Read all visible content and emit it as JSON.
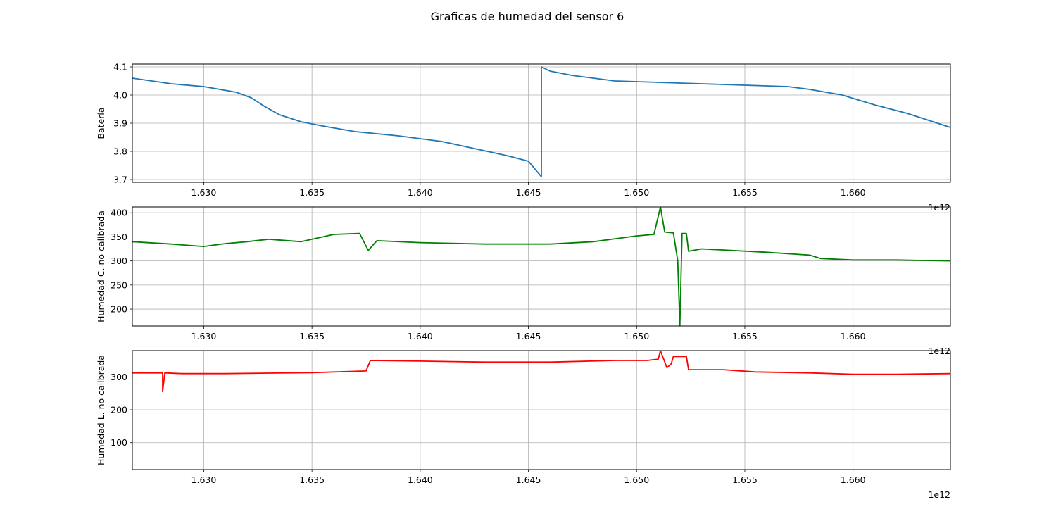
{
  "figure": {
    "title": "Graficas de humedad del sensor 6"
  },
  "chart_data": [
    {
      "type": "line",
      "ylabel": "Batería",
      "xlim": [
        1.6267,
        1.6645
      ],
      "ylim": [
        3.69,
        4.11
      ],
      "x_ticks": [
        "1.630",
        "1.635",
        "1.640",
        "1.645",
        "1.650",
        "1.655",
        "1.660"
      ],
      "y_ticks": [
        "3.7",
        "3.8",
        "3.9",
        "4.0",
        "4.1"
      ],
      "x_offset_label": "1e12",
      "grid": true,
      "series": [
        {
          "color": "#1f77b4",
          "x": [
            1.6267,
            1.6285,
            1.63,
            1.6315,
            1.6322,
            1.6328,
            1.6335,
            1.6345,
            1.6355,
            1.637,
            1.639,
            1.641,
            1.6425,
            1.644,
            1.645,
            1.6456,
            1.6456,
            1.646,
            1.647,
            1.649,
            1.651,
            1.653,
            1.655,
            1.657,
            1.658,
            1.6595,
            1.661,
            1.6625,
            1.6645
          ],
          "y": [
            4.06,
            4.04,
            4.03,
            4.01,
            3.99,
            3.96,
            3.93,
            3.905,
            3.89,
            3.87,
            3.855,
            3.835,
            3.81,
            3.785,
            3.765,
            3.71,
            4.1,
            4.085,
            4.07,
            4.05,
            4.045,
            4.04,
            4.035,
            4.03,
            4.02,
            4.0,
            3.965,
            3.935,
            3.885
          ]
        }
      ]
    },
    {
      "type": "line",
      "ylabel": "Humedad C. no calibrada",
      "xlim": [
        1.6267,
        1.6645
      ],
      "ylim": [
        165,
        412
      ],
      "x_ticks": [
        "1.630",
        "1.635",
        "1.640",
        "1.645",
        "1.650",
        "1.655",
        "1.660"
      ],
      "y_ticks": [
        "200",
        "250",
        "300",
        "350",
        "400"
      ],
      "x_offset_label": "1e12",
      "grid": true,
      "series": [
        {
          "color": "#008000",
          "x": [
            1.6267,
            1.6285,
            1.63,
            1.631,
            1.632,
            1.633,
            1.6345,
            1.636,
            1.6372,
            1.6376,
            1.638,
            1.64,
            1.643,
            1.646,
            1.648,
            1.65,
            1.6508,
            1.6511,
            1.6513,
            1.6517,
            1.6519,
            1.652,
            1.6521,
            1.6523,
            1.6524,
            1.653,
            1.656,
            1.658,
            1.6585,
            1.66,
            1.662,
            1.6645
          ],
          "y": [
            340,
            335,
            330,
            336,
            340,
            345,
            340,
            355,
            357,
            322,
            342,
            338,
            335,
            335,
            340,
            352,
            355,
            412,
            360,
            358,
            300,
            165,
            357,
            357,
            320,
            325,
            318,
            312,
            305,
            302,
            302,
            300
          ]
        }
      ]
    },
    {
      "type": "line",
      "ylabel": "Humedad L. no calibrada",
      "xlim": [
        1.6267,
        1.6645
      ],
      "ylim": [
        18,
        380
      ],
      "x_ticks": [
        "1.630",
        "1.635",
        "1.640",
        "1.645",
        "1.650",
        "1.655",
        "1.660"
      ],
      "y_ticks": [
        "100",
        "200",
        "300"
      ],
      "x_offset_label": "1e12",
      "grid": true,
      "series": [
        {
          "color": "#ff0000",
          "x": [
            1.6267,
            1.6281,
            1.6281,
            1.6282,
            1.629,
            1.631,
            1.635,
            1.6375,
            1.6377,
            1.64,
            1.643,
            1.646,
            1.649,
            1.6505,
            1.651,
            1.6511,
            1.6514,
            1.6516,
            1.6517,
            1.6523,
            1.6524,
            1.654,
            1.6555,
            1.658,
            1.66,
            1.662,
            1.6645
          ],
          "y": [
            312,
            312,
            255,
            312,
            310,
            310,
            313,
            318,
            350,
            348,
            345,
            345,
            350,
            350,
            354,
            380,
            328,
            340,
            362,
            362,
            322,
            322,
            315,
            312,
            308,
            308,
            310
          ]
        }
      ]
    }
  ]
}
